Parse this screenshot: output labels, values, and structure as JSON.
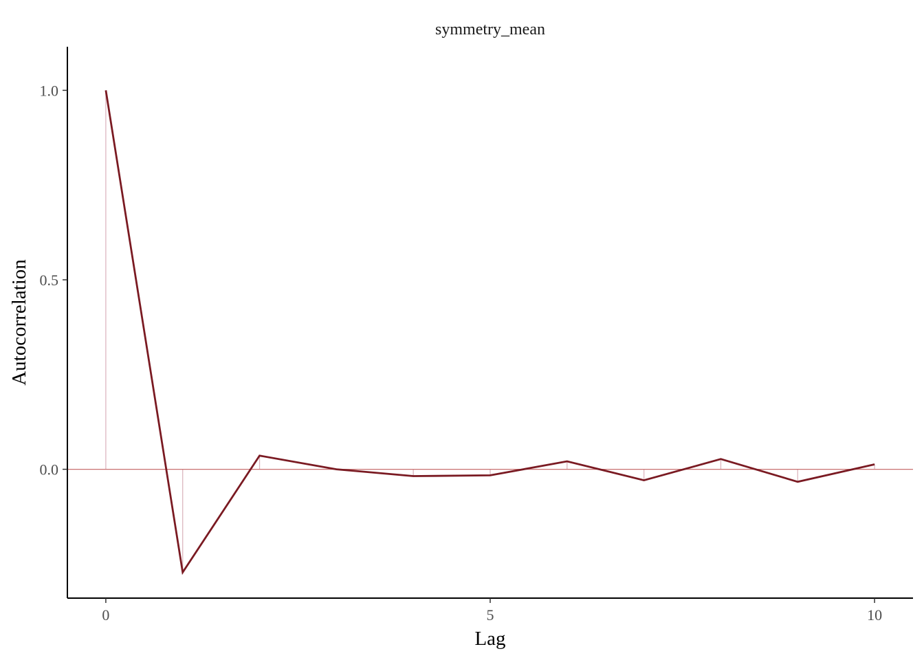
{
  "chart_data": {
    "type": "line",
    "title": "symmetry_mean",
    "xlabel": "Lag",
    "ylabel": "Autocorrelation",
    "x": [
      0,
      1,
      2,
      3,
      4,
      5,
      6,
      7,
      8,
      9,
      10
    ],
    "series": [
      {
        "values": [
          1.0,
          -0.272,
          0.036,
          0.0,
          -0.018,
          -0.016,
          0.021,
          -0.029,
          0.027,
          -0.033,
          0.013
        ]
      }
    ],
    "xlim": [
      -0.5,
      10.5
    ],
    "ylim": [
      -0.34,
      1.115
    ],
    "x_ticks": [
      0,
      5,
      10
    ],
    "x_tick_labels": [
      "0",
      "5",
      "10"
    ],
    "y_ticks": [
      0.0,
      0.5,
      1.0
    ],
    "y_tick_labels": [
      "0.0",
      "0.5",
      "1.0"
    ],
    "reference_line_y": 0,
    "grid": false,
    "colors": {
      "line": "#7a1a22",
      "stems": "#dcb6bf",
      "reference": "#c87070",
      "axis": "#000000"
    }
  }
}
